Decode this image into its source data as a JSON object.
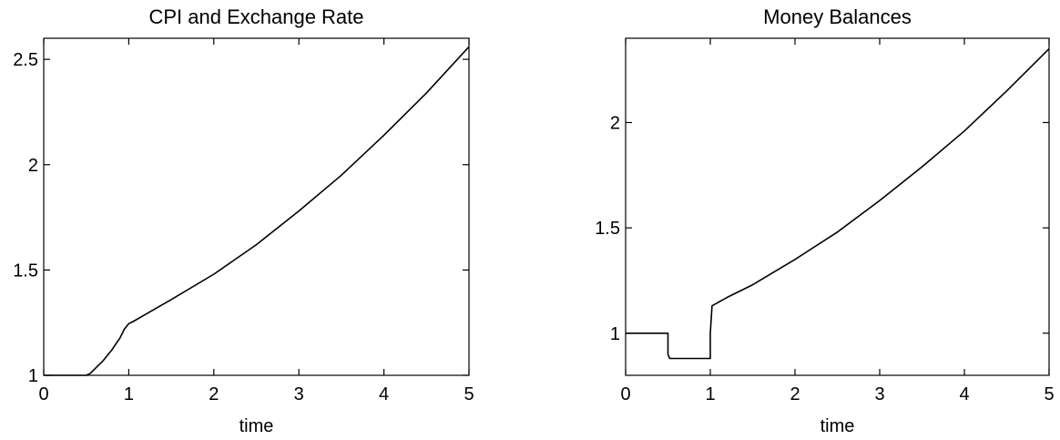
{
  "chart_data": [
    {
      "type": "line",
      "title": "CPI and Exchange Rate",
      "xlabel": "time",
      "ylabel": "",
      "xlim": [
        0,
        5
      ],
      "ylim": [
        1,
        2.6
      ],
      "xticks": [
        "0",
        "1",
        "2",
        "3",
        "4",
        "5"
      ],
      "yticks": [
        "1",
        "1.5",
        "2",
        "2.5"
      ],
      "series": [
        {
          "x": [
            0,
            0.5,
            0.55,
            0.6,
            0.7,
            0.8,
            0.9,
            0.95,
            1.0,
            1.05,
            1.2,
            1.5,
            2.0,
            2.5,
            3.0,
            3.5,
            4.0,
            4.5,
            5.0
          ],
          "values": [
            1.0,
            1.0,
            1.01,
            1.03,
            1.07,
            1.12,
            1.18,
            1.22,
            1.245,
            1.255,
            1.29,
            1.36,
            1.48,
            1.62,
            1.78,
            1.95,
            2.14,
            2.34,
            2.56
          ]
        }
      ]
    },
    {
      "type": "line",
      "title": "Money Balances",
      "xlabel": "time",
      "ylabel": "",
      "xlim": [
        0,
        5
      ],
      "ylim": [
        0.8,
        2.4
      ],
      "xticks": [
        "0",
        "1",
        "2",
        "3",
        "4",
        "5"
      ],
      "yticks": [
        "1",
        "1.5",
        "2"
      ],
      "series": [
        {
          "x": [
            0,
            0.5,
            0.5,
            0.52,
            1.0,
            1.0,
            1.02,
            1.2,
            1.5,
            2.0,
            2.5,
            3.0,
            3.5,
            4.0,
            4.5,
            5.0
          ],
          "values": [
            1.0,
            1.0,
            0.9,
            0.88,
            0.88,
            1.0,
            1.13,
            1.17,
            1.23,
            1.35,
            1.48,
            1.63,
            1.79,
            1.96,
            2.15,
            2.35
          ]
        }
      ]
    }
  ]
}
